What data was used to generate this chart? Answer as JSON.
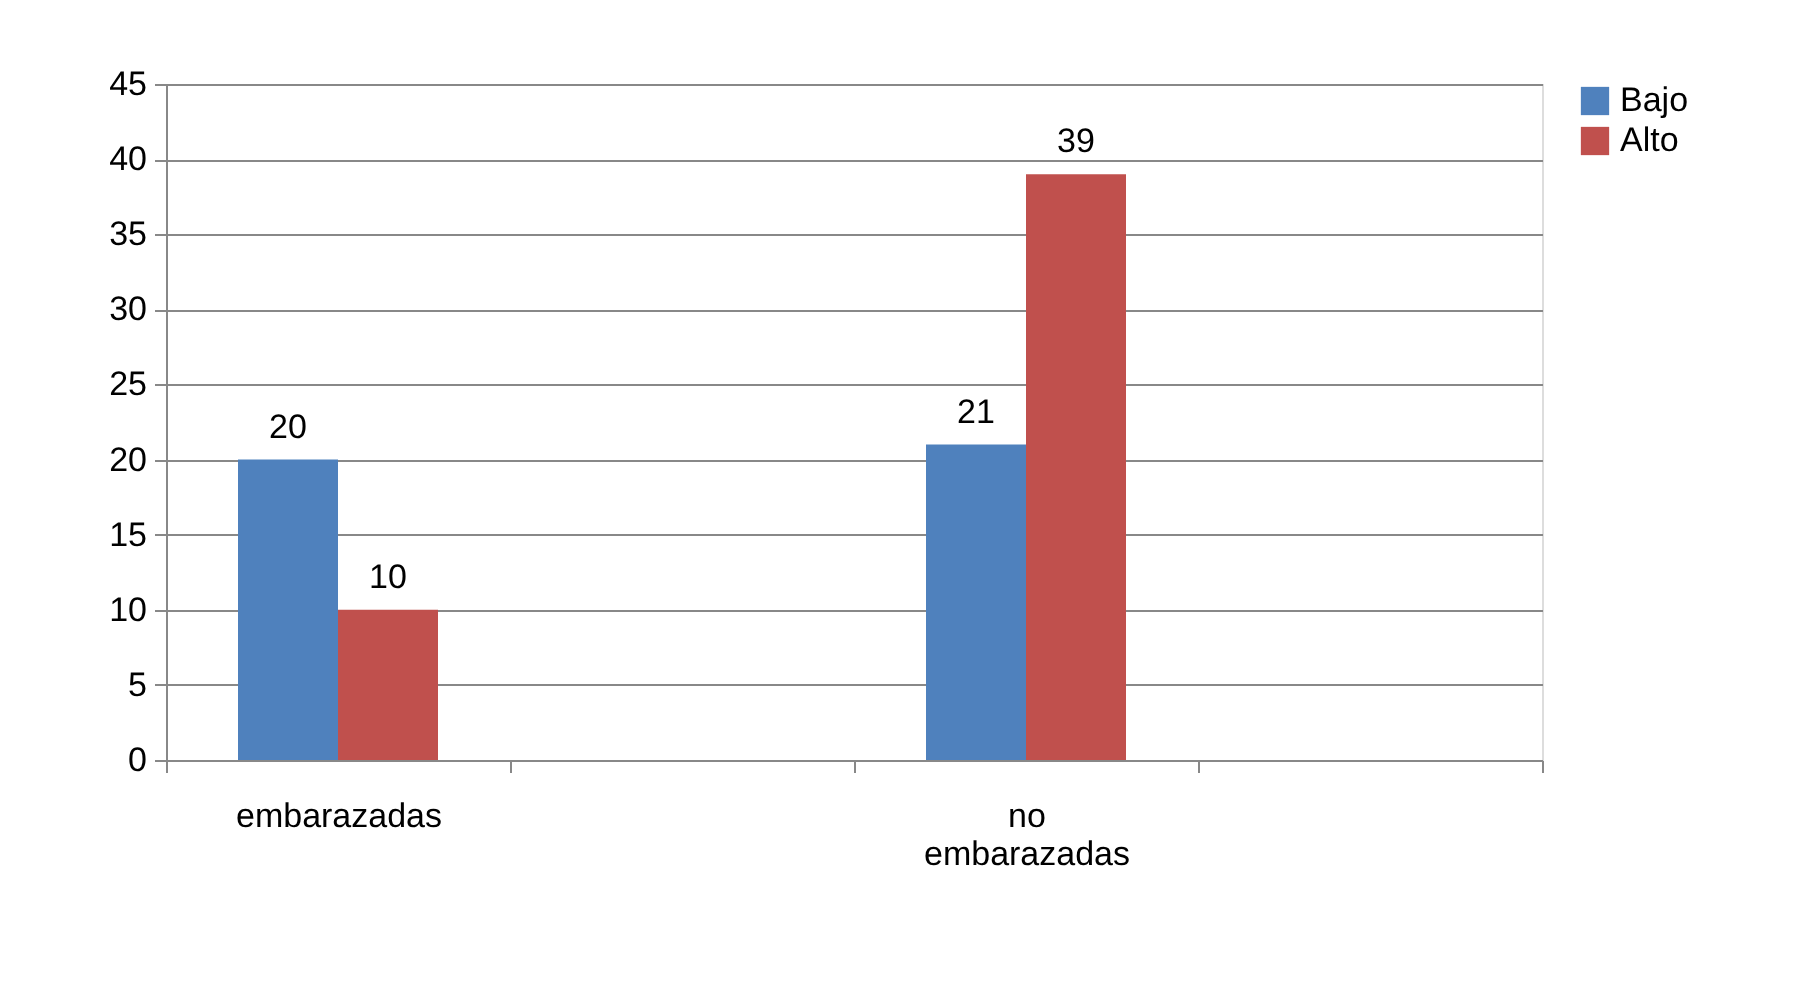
{
  "chart_data": {
    "type": "bar",
    "categories": [
      "embarazadas",
      null,
      "no embarazadas",
      null
    ],
    "series": [
      {
        "name": "Bajo",
        "color": "#4f81bd",
        "values": [
          20,
          null,
          21,
          null
        ]
      },
      {
        "name": "Alto",
        "color": "#c0504d",
        "values": [
          10,
          null,
          39,
          null
        ]
      }
    ],
    "ylim": [
      0,
      45
    ],
    "yticks": [
      0,
      5,
      10,
      15,
      20,
      25,
      30,
      35,
      40,
      45
    ],
    "grid": "y",
    "legend": "right",
    "data_labels": true
  }
}
